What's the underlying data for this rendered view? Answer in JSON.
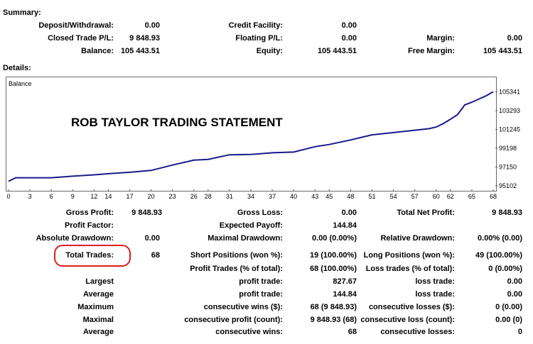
{
  "summary": {
    "title": "Summary:",
    "deposit_withdrawal": {
      "label": "Deposit/Withdrawal:",
      "value": "0.00"
    },
    "credit_facility": {
      "label": "Credit Facility:",
      "value": "0.00"
    },
    "closed_trade_pl": {
      "label": "Closed Trade P/L:",
      "value": "9 848.93"
    },
    "floating_pl": {
      "label": "Floating P/L:",
      "value": "0.00"
    },
    "margin": {
      "label": "Margin:",
      "value": "0.00"
    },
    "balance": {
      "label": "Balance:",
      "value": "105 443.51"
    },
    "equity": {
      "label": "Equity:",
      "value": "105 443.51"
    },
    "free_margin": {
      "label": "Free Margin:",
      "value": "105 443.51"
    }
  },
  "details": {
    "title": "Details:"
  },
  "chart_data": {
    "type": "line",
    "title": "Balance",
    "annotation": "ROB TAYLOR TRADING STATEMENT",
    "x_ticks": [
      "0",
      "3",
      "6",
      "9",
      "12",
      "14",
      "17",
      "20",
      "23",
      "26",
      "28",
      "31",
      "34",
      "37",
      "40",
      "43",
      "45",
      "48",
      "51",
      "54",
      "57",
      "60",
      "62",
      "65",
      "68"
    ],
    "y_ticks": [
      "105341",
      "103293",
      "101245",
      "99198",
      "97150",
      "95102"
    ],
    "ylim": [
      95102,
      105600
    ],
    "xlim": [
      0,
      68.5
    ],
    "series": [
      {
        "x": [
          0,
          1,
          3,
          6,
          9,
          12,
          14,
          17,
          20,
          23,
          26,
          28,
          31,
          34,
          37,
          40,
          43,
          45,
          48,
          51,
          54,
          57,
          59,
          60,
          61,
          62,
          63,
          64,
          65,
          66,
          67,
          68
        ],
        "y": [
          95594,
          95980,
          95980,
          95980,
          96150,
          96300,
          96420,
          96580,
          96780,
          97360,
          97900,
          97980,
          98480,
          98520,
          98700,
          98780,
          99360,
          99600,
          100100,
          100650,
          100900,
          101150,
          101320,
          101500,
          101880,
          102350,
          102850,
          103900,
          104200,
          104550,
          104900,
          105341
        ],
        "color": "#1a1a8c"
      }
    ],
    "grid": false
  },
  "stats": {
    "gross_profit": {
      "label": "Gross Profit:",
      "value": "9 848.93"
    },
    "gross_loss": {
      "label": "Gross Loss:",
      "value": "0.00"
    },
    "total_net_profit": {
      "label": "Total Net Profit:",
      "value": "9 848.93"
    },
    "profit_factor": {
      "label": "Profit Factor:",
      "value": ""
    },
    "expected_payoff": {
      "label": "Expected Payoff:",
      "value": "144.84"
    },
    "absolute_drawdown": {
      "label": "Absolute Drawdown:",
      "value": "0.00"
    },
    "maximal_drawdown": {
      "label": "Maximal Drawdown:",
      "value": "0.00 (0.00%)"
    },
    "relative_drawdown": {
      "label": "Relative Drawdown:",
      "value": "0.00% (0.00)"
    },
    "total_trades": {
      "label": "Total Trades:",
      "value": "68"
    },
    "short_positions": {
      "label": "Short Positions (won %):",
      "value": "19 (100.00%)"
    },
    "long_positions": {
      "label": "Long Positions (won %):",
      "value": "49 (100.00%)"
    },
    "profit_trades": {
      "label": "Profit Trades (% of total):",
      "value": "68 (100.00%)"
    },
    "loss_trades": {
      "label": "Loss trades (% of total):",
      "value": "0 (0.00%)"
    },
    "largest": {
      "label": "Largest",
      "profit_label": "profit trade:",
      "profit_value": "827.67",
      "loss_label": "loss trade:",
      "loss_value": "0.00"
    },
    "average": {
      "label": "Average",
      "profit_label": "profit trade:",
      "profit_value": "144.84",
      "loss_label": "loss trade:",
      "loss_value": "0.00"
    },
    "maximum": {
      "label": "Maximum",
      "wins_label": "consecutive wins ($):",
      "wins_value": "68 (9 848.93)",
      "losses_label": "consecutive losses ($):",
      "losses_value": "0 (0.00)"
    },
    "maximal": {
      "label": "Maximal",
      "profit_label": "consecutive profit (count):",
      "profit_value": "9 848.93 (68)",
      "loss_label": "consecutive loss (count):",
      "loss_value": "0.00 (0)"
    },
    "average_consec": {
      "label": "Average",
      "wins_label": "consecutive wins:",
      "wins_value": "68",
      "losses_label": "consecutive losses:",
      "losses_value": "0"
    }
  },
  "colors": {
    "line": "#1a1a8c",
    "highlight": "#e01b1b",
    "frame": "#6b6b6b"
  }
}
